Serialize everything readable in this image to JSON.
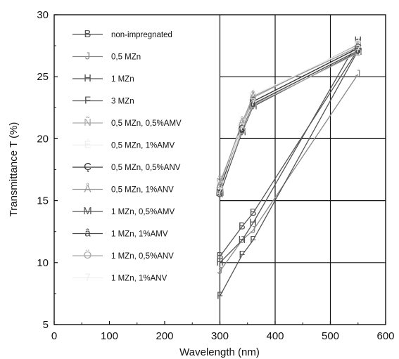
{
  "chart_data": {
    "type": "line",
    "xlabel": "Wavelength  (nm)",
    "ylabel": "Transmittance T (%)",
    "xlim": [
      0,
      600
    ],
    "ylim": [
      5,
      30
    ],
    "xticks": [
      0,
      100,
      200,
      300,
      400,
      500,
      600
    ],
    "yticks": [
      5,
      10,
      15,
      20,
      25,
      30
    ],
    "grid": "right half (x ≥ 300)",
    "legend_position": "top-left",
    "x": [
      300,
      340,
      360,
      550
    ],
    "series": [
      {
        "name": "non-impregnated",
        "marker": "B",
        "color": "#555555",
        "values": [
          10.5,
          12.9,
          14.0,
          27.2
        ]
      },
      {
        "name": "0,5 MZn",
        "marker": "J",
        "color": "#888888",
        "values": [
          9.3,
          11.8,
          12.6,
          25.2
        ]
      },
      {
        "name": "1 MZn",
        "marker": "H",
        "color": "#555555",
        "values": [
          10.0,
          11.8,
          13.2,
          27.9
        ]
      },
      {
        "name": "3 MZn",
        "marker": "F",
        "color": "#555555",
        "values": [
          7.3,
          10.6,
          11.8,
          27.1
        ]
      },
      {
        "name": "0,5 MZn, 0,5%AMV",
        "marker": "Ñ",
        "color": "#aaaaaa",
        "values": [
          16.5,
          21.0,
          23.3,
          27.6
        ]
      },
      {
        "name": "0,5 MZn, 1%AMV",
        "marker": "É",
        "color": "#eeeeee",
        "values": [
          16.2,
          21.2,
          23.5,
          27.5
        ]
      },
      {
        "name": "0,5 MZn, 0,5%ANV",
        "marker": "Ç",
        "color": "#333333",
        "values": [
          16.0,
          20.8,
          23.0,
          27.3
        ]
      },
      {
        "name": "0,5 MZn, 1%ANV",
        "marker": "Å",
        "color": "#999999",
        "values": [
          16.3,
          21.3,
          23.4,
          27.4
        ]
      },
      {
        "name": "1 MZn, 0,5%AMV",
        "marker": "M",
        "color": "#555555",
        "values": [
          15.6,
          20.5,
          22.6,
          27.0
        ]
      },
      {
        "name": "1 MZn, 1%AMV",
        "marker": "â",
        "color": "#444444",
        "values": [
          15.5,
          20.7,
          22.8,
          27.1
        ]
      },
      {
        "name": "1 MZn, 0,5%ANV",
        "marker": "Ö",
        "color": "#aaaaaa",
        "values": [
          15.8,
          20.6,
          22.7,
          26.9
        ]
      },
      {
        "name": "1 MZn, 1%ANV",
        "marker": "7",
        "color": "#eeeeee",
        "values": [
          15.7,
          20.9,
          22.9,
          27.2
        ]
      }
    ]
  }
}
